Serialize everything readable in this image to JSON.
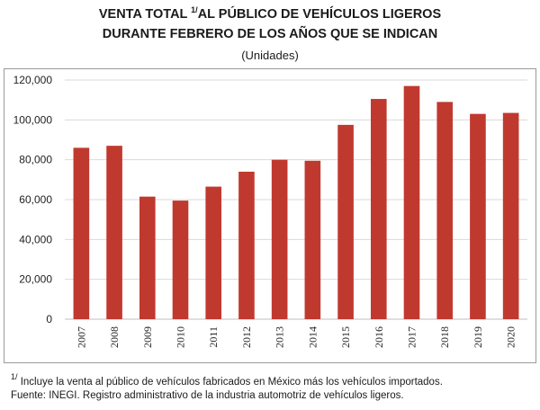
{
  "header": {
    "title_line1_a": "VENTA TOTAL ",
    "title_sup": "1/",
    "title_line1_b": "AL PÚBLICO DE VEHÍCULOS LIGEROS",
    "title_line2": "DURANTE FEBRERO DE LOS AÑOS QUE SE INDICAN",
    "subtitle": "(Unidades)"
  },
  "footnotes": {
    "note_sup": "1/",
    "note_text": " Incluye la venta al público de vehículos fabricados en México más los vehículos importados.",
    "source": "Fuente: INEGI. Registro administrativo de la industria automotriz de vehículos ligeros."
  },
  "chart_data": {
    "type": "bar",
    "title": "VENTA TOTAL 1/ AL PÚBLICO DE VEHÍCULOS LIGEROS DURANTE FEBRERO DE LOS AÑOS QUE SE INDICAN",
    "subtitle": "(Unidades)",
    "categories": [
      "2007",
      "2008",
      "2009",
      "2010",
      "2011",
      "2012",
      "2013",
      "2014",
      "2015",
      "2016",
      "2017",
      "2018",
      "2019",
      "2020"
    ],
    "values": [
      86000,
      87000,
      61500,
      59500,
      66500,
      74000,
      80000,
      79500,
      97500,
      110500,
      117000,
      109000,
      103000,
      103500
    ],
    "ylim": [
      0,
      120000
    ],
    "yticks": [
      0,
      20000,
      40000,
      60000,
      80000,
      100000,
      120000
    ],
    "ytick_labels": [
      "0",
      "20,000",
      "40,000",
      "60,000",
      "80,000",
      "100,000",
      "120,000"
    ],
    "xlabel": "",
    "ylabel": "",
    "grid": true,
    "bar_color": "#c0392f",
    "grid_color": "#d9d9d9"
  }
}
